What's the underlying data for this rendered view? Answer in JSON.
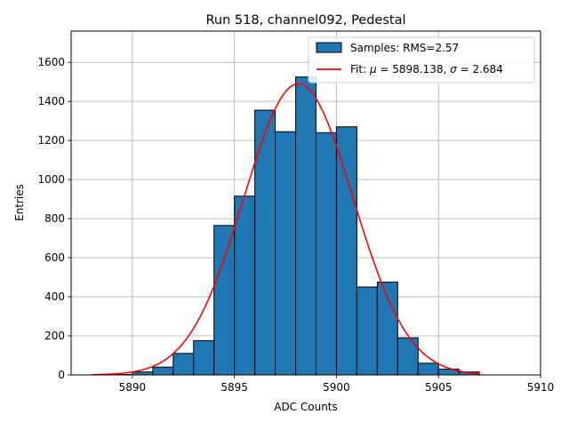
{
  "chart_data": {
    "type": "bar",
    "title": "Run 518, channel092, Pedestal",
    "xlabel": "ADC Counts",
    "ylabel": "Entries",
    "xlim": [
      5887,
      5910
    ],
    "ylim": [
      0,
      1760
    ],
    "xticks": [
      5890,
      5895,
      5900,
      5905,
      5910
    ],
    "yticks": [
      0,
      200,
      400,
      600,
      800,
      1000,
      1200,
      1400,
      1600
    ],
    "grid": true,
    "legend_position": "top-right",
    "histogram": {
      "name": "Samples: RMS=2.57",
      "color": "#1f77b4",
      "edge_color": "#000000",
      "bin_edges": [
        5889,
        5890,
        5891,
        5892,
        5893,
        5894,
        5895,
        5896,
        5897,
        5898,
        5899,
        5900,
        5901,
        5902,
        5903,
        5904,
        5905,
        5906,
        5907
      ],
      "counts": [
        2,
        15,
        40,
        110,
        175,
        765,
        915,
        1355,
        1245,
        1525,
        1240,
        1270,
        450,
        475,
        190,
        60,
        30,
        15
      ]
    },
    "fit": {
      "name_prefix": "Fit: ",
      "mu_symbol": "μ",
      "mu_text": " = 5898.138, ",
      "sigma_symbol": "σ",
      "sigma_text": " = 2.684",
      "mu": 5898.138,
      "sigma": 2.684,
      "peak": 1490,
      "x_range": [
        5888,
        5907
      ],
      "color": "#ff0000"
    }
  }
}
